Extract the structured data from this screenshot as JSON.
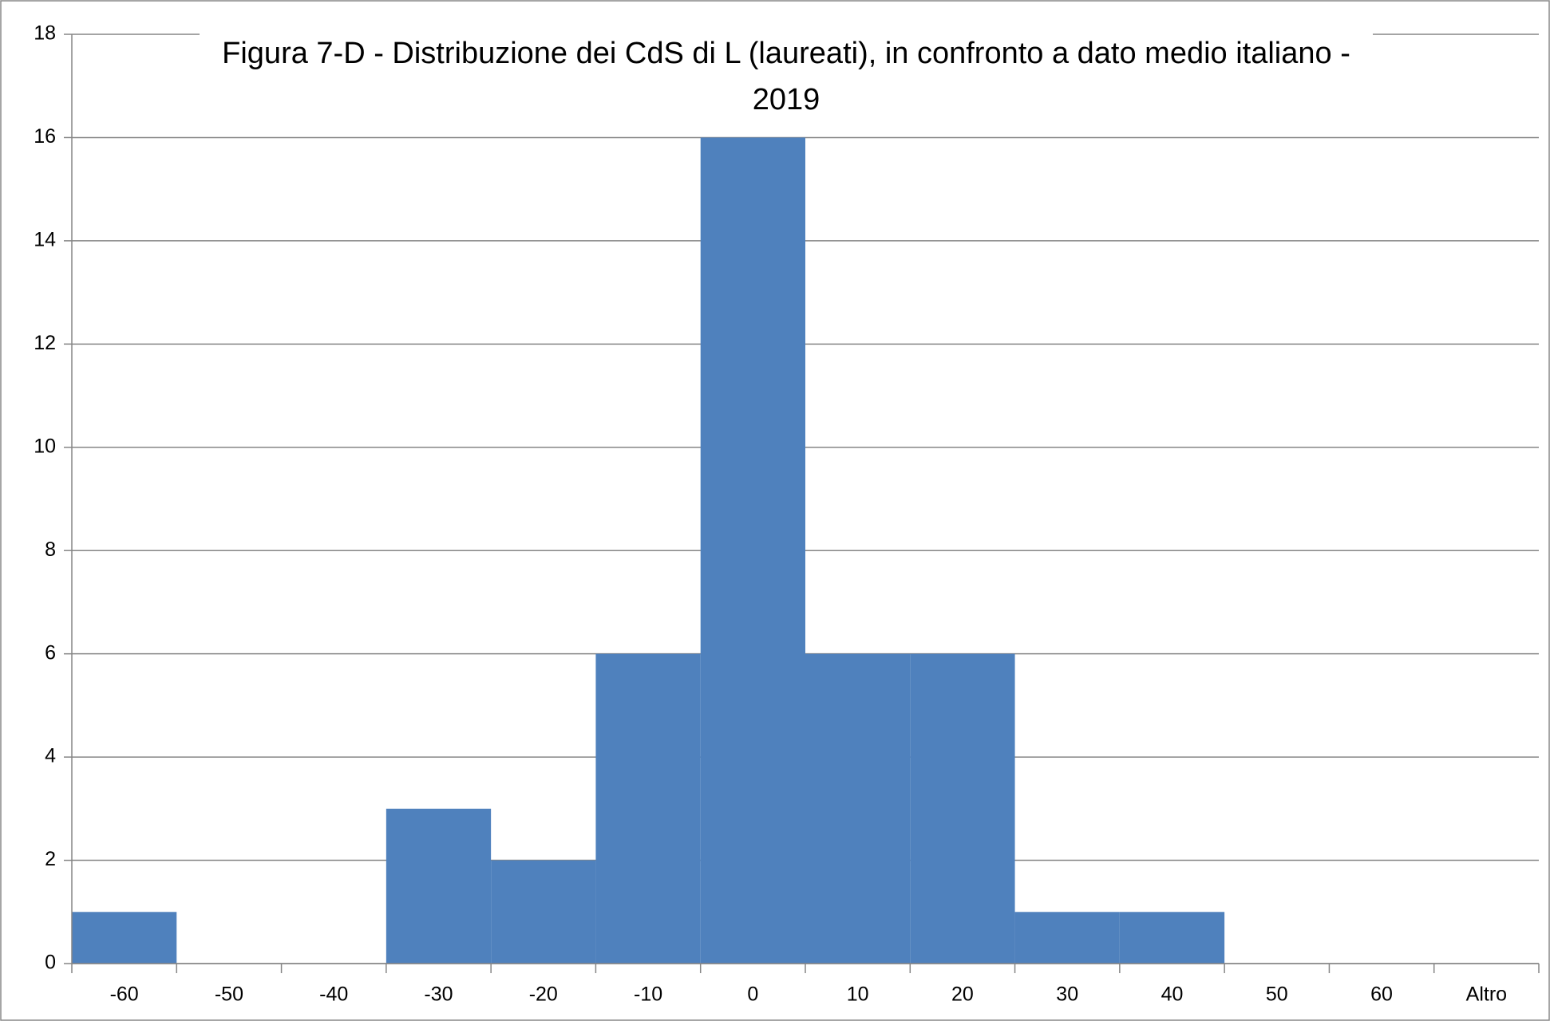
{
  "chart_data": {
    "type": "bar",
    "title": "Figura 7-D - Distribuzione dei CdS di L (laureati), in confronto a dato medio italiano - 2019",
    "categories": [
      "-60",
      "-50",
      "-40",
      "-30",
      "-20",
      "-10",
      "0",
      "10",
      "20",
      "30",
      "40",
      "50",
      "60",
      "Altro"
    ],
    "values": [
      1,
      0,
      0,
      3,
      2,
      6,
      16,
      6,
      6,
      1,
      1,
      0,
      0,
      0
    ],
    "color": "#4f81bd",
    "ylim": [
      0,
      18
    ],
    "yticks": [
      0,
      2,
      4,
      6,
      8,
      10,
      12,
      14,
      16,
      18
    ],
    "grid": true
  }
}
